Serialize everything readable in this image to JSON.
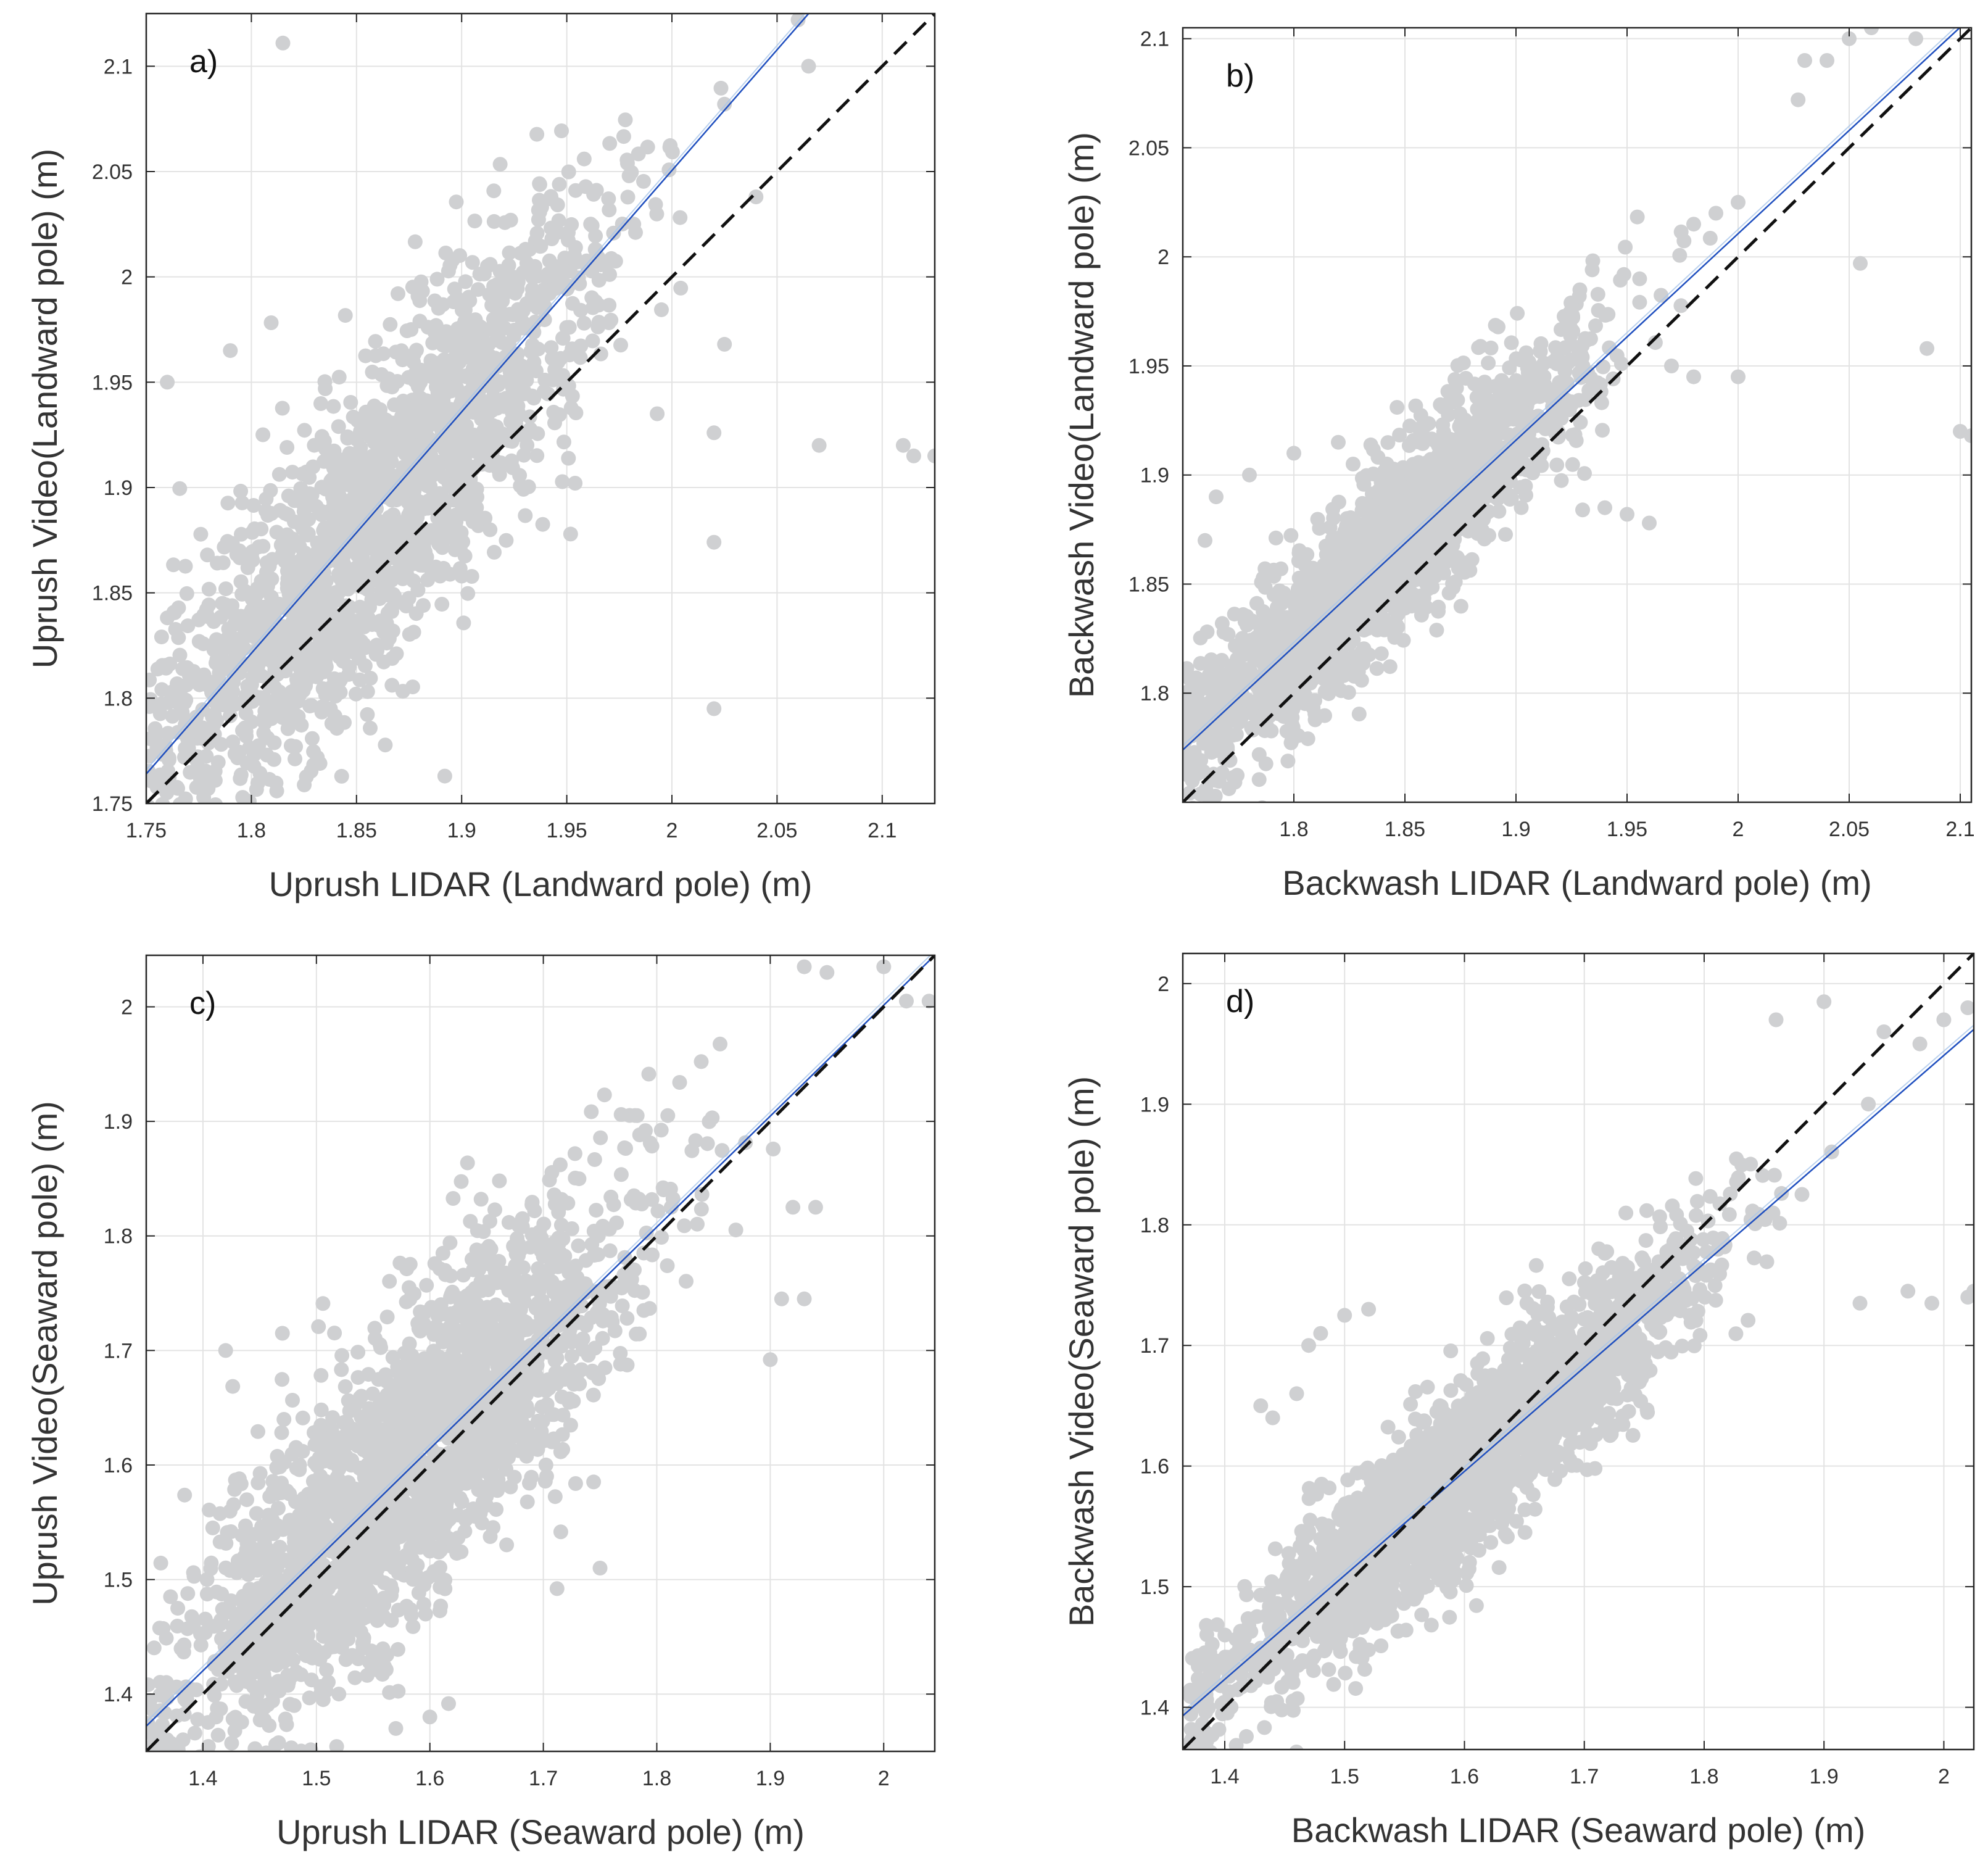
{
  "chart_data": [
    {
      "type": "scatter",
      "panel_label": "a)",
      "xlabel": "Uprush LIDAR (Landward pole) (m)",
      "ylabel": "Uprush Video(Landward pole) (m)",
      "xlim": [
        1.75,
        2.125
      ],
      "ylim": [
        1.75,
        2.125
      ],
      "xticks": [
        1.75,
        1.8,
        1.85,
        1.9,
        1.95,
        2,
        2.05,
        2.1
      ],
      "xtick_labels": [
        "1.75",
        "1.8",
        "1.85",
        "1.9",
        "1.95",
        "2",
        "2.05",
        "2.1"
      ],
      "yticks": [
        1.75,
        1.8,
        1.85,
        1.9,
        1.95,
        2,
        2.05,
        2.1
      ],
      "ytick_labels": [
        "1.75",
        "1.8",
        "1.85",
        "1.9",
        "1.95",
        "2",
        "2.05",
        "2.1"
      ],
      "grid": true,
      "series": [
        {
          "name": "measurements",
          "color": "#cfd0d2",
          "cloud": {
            "n": 1900,
            "x_center": 1.86,
            "x_spread": 0.055,
            "x_min": 1.75,
            "x_max": 2.08,
            "slope": 1.12,
            "intercept": -0.197,
            "noise": 0.038,
            "seed": 11
          },
          "outliers": [
            [
              1.815,
              2.111
            ],
            [
              2.11,
              1.92
            ],
            [
              2.115,
              1.915
            ],
            [
              2.125,
              1.915
            ],
            [
              2.07,
              1.92
            ],
            [
              2.02,
              1.874
            ],
            [
              2.02,
              1.795
            ],
            [
              1.892,
              1.763
            ],
            [
              2.02,
              1.926
            ],
            [
              2.025,
              1.968
            ],
            [
              2.04,
              2.038
            ],
            [
              1.993,
              1.935
            ],
            [
              2.025,
              2.082
            ],
            [
              2.06,
              2.122
            ],
            [
              2.065,
              2.1
            ],
            [
              1.76,
              1.95
            ],
            [
              1.79,
              1.965
            ]
          ]
        },
        {
          "name": "linear fit",
          "type": "line",
          "color": "#1f4fbf",
          "x": [
            1.75,
            2.065
          ],
          "y": [
            1.764,
            2.125
          ]
        },
        {
          "name": "1:1 line",
          "type": "line",
          "style": "dashed",
          "color": "#111111",
          "x": [
            1.75,
            2.125
          ],
          "y": [
            1.75,
            2.125
          ]
        }
      ]
    },
    {
      "type": "scatter",
      "panel_label": "b)",
      "xlabel": "Backwash LIDAR (Landward pole) (m)",
      "ylabel": "Backwash Video(Landward pole) (m)",
      "xlim": [
        1.75,
        2.105
      ],
      "ylim": [
        1.75,
        2.105
      ],
      "xticks": [
        1.8,
        1.85,
        1.9,
        1.95,
        2,
        2.05,
        2.1
      ],
      "xtick_labels": [
        "1.8",
        "1.85",
        "1.9",
        "1.95",
        "2",
        "2.05",
        "2.1"
      ],
      "yticks": [
        1.8,
        1.85,
        1.9,
        1.95,
        2,
        2.05,
        2.1
      ],
      "ytick_labels": [
        "1.8",
        "1.85",
        "1.9",
        "1.95",
        "2",
        "2.05",
        "2.1"
      ],
      "grid": true,
      "series": [
        {
          "name": "measurements",
          "color": "#cfd0d2",
          "cloud": {
            "n": 1900,
            "x_center": 1.84,
            "x_spread": 0.045,
            "x_min": 1.75,
            "x_max": 2.04,
            "slope": 1.0,
            "intercept": 0.022,
            "noise": 0.02,
            "seed": 23
          },
          "outliers": [
            [
              1.765,
              1.89
            ],
            [
              1.78,
              1.9
            ],
            [
              1.8,
              1.91
            ],
            [
              1.82,
              1.915
            ],
            [
              1.76,
              1.87
            ],
            [
              1.96,
              1.878
            ],
            [
              1.95,
              1.882
            ],
            [
              1.94,
              1.885
            ],
            [
              1.93,
              1.884
            ],
            [
              1.97,
              1.95
            ],
            [
              1.98,
              1.945
            ],
            [
              2.0,
              1.945
            ],
            [
              2.05,
              2.1
            ],
            [
              2.06,
              2.105
            ],
            [
              2.08,
              2.1
            ],
            [
              2.085,
              1.958
            ],
            [
              2.1,
              1.92
            ],
            [
              2.105,
              1.918
            ],
            [
              2.055,
              1.997
            ],
            [
              2.027,
              2.072
            ],
            [
              2.03,
              2.09
            ],
            [
              2.04,
              2.09
            ],
            [
              1.99,
              2.02
            ],
            [
              2.0,
              2.025
            ],
            [
              1.98,
              2.015
            ]
          ]
        },
        {
          "name": "linear fit",
          "type": "line",
          "color": "#1f4fbf",
          "x": [
            1.75,
            2.105
          ],
          "y": [
            1.774,
            2.11
          ]
        },
        {
          "name": "1:1 line",
          "type": "line",
          "style": "dashed",
          "color": "#111111",
          "x": [
            1.75,
            2.105
          ],
          "y": [
            1.75,
            2.105
          ]
        }
      ]
    },
    {
      "type": "scatter",
      "panel_label": "c)",
      "xlabel": "Uprush LIDAR (Seaward pole) (m)",
      "ylabel": "Uprush Video(Seaward pole) (m)",
      "xlim": [
        1.35,
        2.045
      ],
      "ylim": [
        1.35,
        2.045
      ],
      "xticks": [
        1.4,
        1.5,
        1.6,
        1.7,
        1.8,
        1.9,
        2
      ],
      "xtick_labels": [
        "1.4",
        "1.5",
        "1.6",
        "1.7",
        "1.8",
        "1.9",
        "2"
      ],
      "yticks": [
        1.4,
        1.5,
        1.6,
        1.7,
        1.8,
        1.9,
        2
      ],
      "ytick_labels": [
        "1.4",
        "1.5",
        "1.6",
        "1.7",
        "1.8",
        "1.9",
        "2"
      ],
      "grid": true,
      "series": [
        {
          "name": "measurements",
          "color": "#cfd0d2",
          "cloud": {
            "n": 2300,
            "x_center": 1.58,
            "x_spread": 0.1,
            "x_min": 1.35,
            "x_max": 1.95,
            "slope": 0.98,
            "intercept": 0.05,
            "noise": 0.065,
            "seed": 37
          },
          "outliers": [
            [
              1.93,
              2.035
            ],
            [
              1.95,
              2.03
            ],
            [
              2.0,
              2.035
            ],
            [
              2.04,
              2.005
            ],
            [
              2.02,
              2.005
            ],
            [
              1.91,
              1.745
            ],
            [
              1.93,
              1.745
            ],
            [
              1.9,
              1.692
            ],
            [
              1.94,
              1.825
            ],
            [
              1.92,
              1.825
            ],
            [
              1.42,
              1.7
            ],
            [
              1.47,
              1.715
            ],
            [
              1.75,
              1.51
            ],
            [
              1.57,
              1.37
            ],
            [
              1.6,
              1.38
            ]
          ]
        },
        {
          "name": "linear fit",
          "type": "line",
          "color": "#1f4fbf",
          "x": [
            1.35,
            2.045
          ],
          "y": [
            1.372,
            2.045
          ]
        },
        {
          "name": "1:1 line",
          "type": "line",
          "style": "dashed",
          "color": "#111111",
          "x": [
            1.35,
            2.045
          ],
          "y": [
            1.35,
            2.045
          ]
        }
      ]
    },
    {
      "type": "scatter",
      "panel_label": "d)",
      "xlabel": "Backwash LIDAR (Seaward pole) (m)",
      "ylabel": "Backwash Video(Seaward pole) (m)",
      "xlim": [
        1.365,
        2.025
      ],
      "ylim": [
        1.365,
        2.025
      ],
      "xticks": [
        1.4,
        1.5,
        1.6,
        1.7,
        1.8,
        1.9,
        2
      ],
      "xtick_labels": [
        "1.4",
        "1.5",
        "1.6",
        "1.7",
        "1.8",
        "1.9",
        "2"
      ],
      "yticks": [
        1.4,
        1.5,
        1.6,
        1.7,
        1.8,
        1.9,
        2
      ],
      "ytick_labels": [
        "1.4",
        "1.5",
        "1.6",
        "1.7",
        "1.8",
        "1.9",
        "2"
      ],
      "grid": true,
      "series": [
        {
          "name": "measurements",
          "color": "#cfd0d2",
          "cloud": {
            "n": 2300,
            "x_center": 1.6,
            "x_spread": 0.1,
            "x_min": 1.37,
            "x_max": 1.96,
            "slope": 0.87,
            "intercept": 0.203,
            "noise": 0.035,
            "seed": 53
          },
          "outliers": [
            [
              1.43,
              1.65
            ],
            [
              1.44,
              1.64
            ],
            [
              1.47,
              1.7
            ],
            [
              1.48,
              1.71
            ],
            [
              1.5,
              1.725
            ],
            [
              1.52,
              1.73
            ],
            [
              1.46,
              1.66
            ],
            [
              1.93,
              1.735
            ],
            [
              1.99,
              1.735
            ],
            [
              1.97,
              1.745
            ],
            [
              2.02,
              1.74
            ],
            [
              2.025,
              1.745
            ],
            [
              1.9,
              1.985
            ],
            [
              1.86,
              1.97
            ],
            [
              1.95,
              1.96
            ],
            [
              1.98,
              1.95
            ],
            [
              2.0,
              1.97
            ],
            [
              2.02,
              1.98
            ]
          ]
        },
        {
          "name": "linear fit",
          "type": "line",
          "color": "#1f4fbf",
          "x": [
            1.365,
            2.025
          ],
          "y": [
            1.393,
            1.962
          ]
        },
        {
          "name": "1:1 line",
          "type": "line",
          "style": "dashed",
          "color": "#111111",
          "x": [
            1.365,
            2.025
          ],
          "y": [
            1.365,
            2.025
          ]
        }
      ]
    }
  ]
}
